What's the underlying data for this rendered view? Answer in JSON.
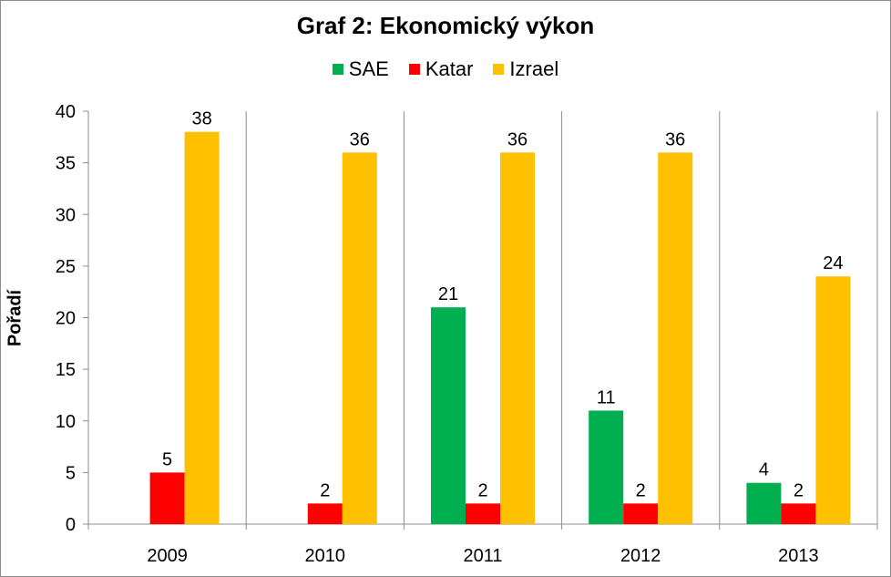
{
  "chart_data": {
    "type": "bar",
    "title": "Graf 2: Ekonomický výkon",
    "xlabel": "",
    "ylabel": "Pořadí",
    "categories": [
      "2009",
      "2010",
      "2011",
      "2012",
      "2013"
    ],
    "ylim": [
      0,
      40
    ],
    "yticks": [
      0,
      5,
      10,
      15,
      20,
      25,
      30,
      35,
      40
    ],
    "grid": "vertical",
    "legend": "top",
    "series": [
      {
        "name": "SAE",
        "color": "#00b050",
        "values": [
          null,
          null,
          21,
          11,
          4
        ]
      },
      {
        "name": "Katar",
        "color": "#ff0000",
        "values": [
          5,
          2,
          2,
          2,
          2
        ]
      },
      {
        "name": "Izrael",
        "color": "#ffc000",
        "values": [
          38,
          36,
          36,
          36,
          24
        ]
      }
    ]
  }
}
